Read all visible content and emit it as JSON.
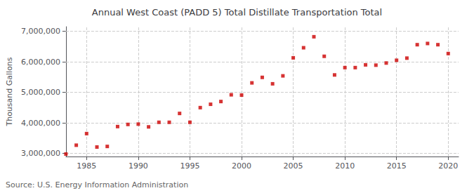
{
  "chart_data": {
    "type": "scatter",
    "title": "Annual West Coast (PADD 5) Total Distillate Transportation Total",
    "ylabel": "Thousand Gallons",
    "annotations": [
      "Source: U.S. Energy Information Administration"
    ],
    "x": [
      1983,
      1984,
      1985,
      1986,
      1987,
      1988,
      1989,
      1990,
      1991,
      1992,
      1993,
      1994,
      1995,
      1996,
      1997,
      1998,
      1999,
      2000,
      2001,
      2002,
      2003,
      2004,
      2005,
      2006,
      2007,
      2008,
      2009,
      2010,
      2011,
      2012,
      2013,
      2014,
      2015,
      2016,
      2017,
      2018,
      2019,
      2020
    ],
    "values": [
      2980000,
      3270000,
      3650000,
      3210000,
      3230000,
      3880000,
      3950000,
      3960000,
      3870000,
      4020000,
      4020000,
      4310000,
      4020000,
      4500000,
      4610000,
      4700000,
      4920000,
      4910000,
      5310000,
      5490000,
      5280000,
      5540000,
      6130000,
      6460000,
      6820000,
      6180000,
      5570000,
      5810000,
      5810000,
      5900000,
      5890000,
      5960000,
      6050000,
      6120000,
      6560000,
      6600000,
      6560000,
      6270000
    ],
    "color": "#cc0000",
    "marker": "square",
    "xlim": [
      1983,
      2021
    ],
    "xticks": [
      1985,
      1990,
      1995,
      2000,
      2005,
      2010,
      2015,
      2020
    ],
    "ylim": [
      2900000,
      7150000
    ],
    "yticks": [
      {
        "value": 3000000,
        "label": "3,000,000"
      },
      {
        "value": 4000000,
        "label": "4,000,000"
      },
      {
        "value": 5000000,
        "label": "5,000,000"
      },
      {
        "value": 6000000,
        "label": "6,000,000"
      },
      {
        "value": 7000000,
        "label": "7,000,000"
      }
    ],
    "grid": true
  }
}
